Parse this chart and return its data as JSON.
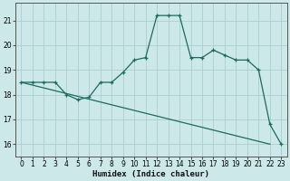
{
  "xlabel": "Humidex (Indice chaleur)",
  "bg_color": "#cce8e8",
  "grid_color": "#aacfcf",
  "line_color": "#1a6b60",
  "line1_x": [
    0,
    1,
    2,
    3,
    4,
    5,
    6,
    7,
    8,
    9,
    10,
    11,
    12,
    13,
    14,
    15,
    16,
    17,
    18,
    19,
    20,
    21,
    22,
    23
  ],
  "line1_y": [
    18.5,
    18.5,
    18.5,
    18.5,
    18.0,
    17.8,
    17.9,
    18.5,
    18.5,
    18.9,
    19.4,
    19.5,
    21.2,
    21.2,
    21.2,
    19.5,
    19.5,
    19.8,
    19.6,
    19.4,
    19.4,
    19.0,
    16.8,
    16.0
  ],
  "line2_x": [
    0,
    22
  ],
  "line2_y": [
    18.5,
    16.0
  ],
  "ylim": [
    15.5,
    21.7
  ],
  "yticks": [
    16,
    17,
    18,
    19,
    20,
    21
  ],
  "xlim": [
    -0.5,
    23.5
  ],
  "xticks": [
    0,
    1,
    2,
    3,
    4,
    5,
    6,
    7,
    8,
    9,
    10,
    11,
    12,
    13,
    14,
    15,
    16,
    17,
    18,
    19,
    20,
    21,
    22,
    23
  ],
  "xlabel_fontsize": 6.5,
  "tick_fontsize": 5.5
}
